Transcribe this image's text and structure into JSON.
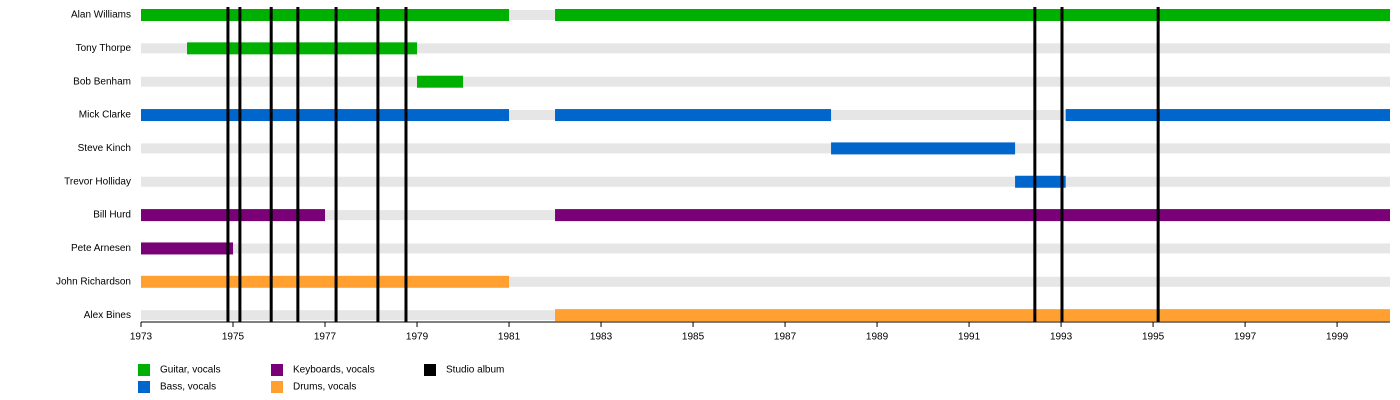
{
  "chart_data": {
    "type": "timeline",
    "categories": [
      "Alan Williams",
      "Tony Thorpe",
      "Bob Benham",
      "Mick Clarke",
      "Steve Kinch",
      "Trevor Holliday",
      "Bill Hurd",
      "Pete Arnesen",
      "John Richardson",
      "Alex Bines"
    ],
    "series": [
      {
        "name": "Guitar, vocals",
        "color": "#00b000",
        "values": [
          [
            [
              1973,
              1981
            ],
            [
              1982,
              2000.15
            ]
          ],
          [
            [
              1974,
              1979
            ]
          ],
          [
            [
              1979,
              1980
            ]
          ],
          null,
          null,
          null,
          null,
          null,
          null,
          null
        ]
      },
      {
        "name": "Bass, vocals",
        "color": "#0066cc",
        "values": [
          null,
          null,
          null,
          [
            [
              1973,
              1981
            ],
            [
              1982,
              1988
            ],
            [
              1993.1,
              2000.15
            ]
          ],
          [
            [
              1988,
              1992
            ]
          ],
          [
            [
              1992,
              1993.1
            ]
          ],
          null,
          null,
          null,
          null
        ]
      },
      {
        "name": "Keyboards, vocals",
        "color": "#7a0077",
        "values": [
          null,
          null,
          null,
          null,
          null,
          null,
          [
            [
              1973,
              1977
            ],
            [
              1982,
              2000.15
            ]
          ],
          [
            [
              1973,
              1975
            ]
          ],
          null,
          null
        ]
      },
      {
        "name": "Drums, vocals",
        "color": "#ffa030",
        "values": [
          null,
          null,
          null,
          null,
          null,
          null,
          null,
          null,
          [
            [
              1973,
              1981
            ]
          ],
          [
            [
              1982,
              2000.15
            ]
          ]
        ]
      },
      {
        "name": "Studio album",
        "color": "#000000",
        "values": [
          1974.89,
          1975.15,
          1975.83,
          1976.41,
          1977.24,
          1978.15,
          1978.76,
          1992.43,
          1993.02,
          1995.11
        ]
      }
    ],
    "xlim": [
      1973,
      2000.15
    ],
    "xticks": [
      1973,
      1975,
      1977,
      1979,
      1981,
      1983,
      1985,
      1987,
      1989,
      1991,
      1993,
      1995,
      1997,
      1999
    ]
  }
}
